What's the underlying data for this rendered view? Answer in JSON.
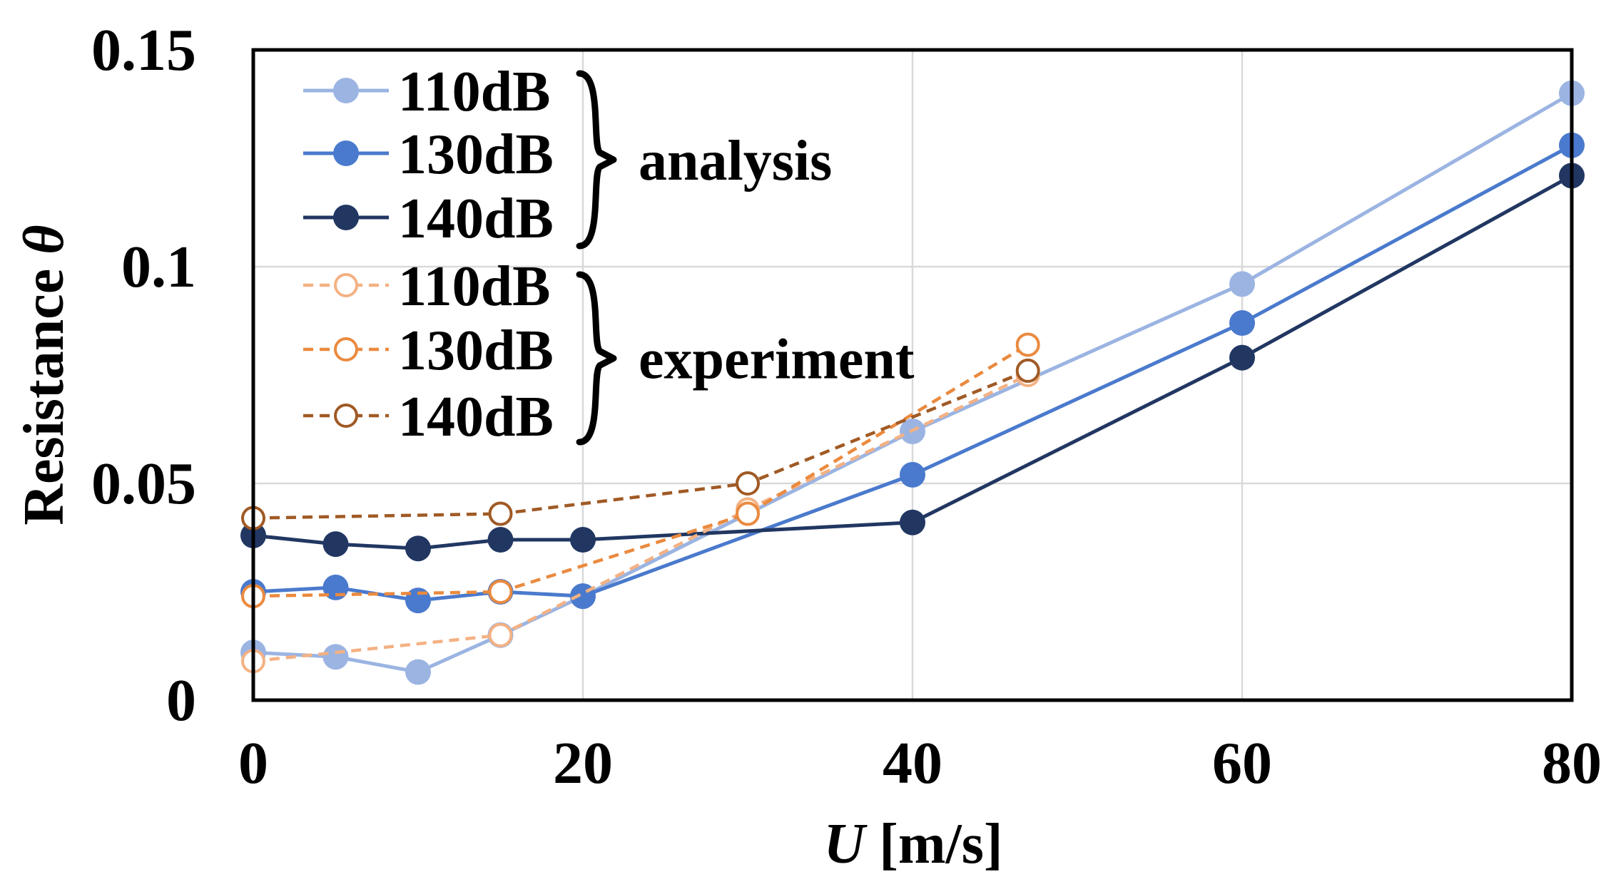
{
  "chart_data": {
    "type": "line",
    "xlabel": {
      "symbol": "U",
      "unit": " [m/s]"
    },
    "ylabel": {
      "text": "Resistance ",
      "symbol": "θ"
    },
    "xlim": [
      0,
      80
    ],
    "ylim": [
      0,
      0.15
    ],
    "x_ticks": [
      "0",
      "20",
      "40",
      "60",
      "80"
    ],
    "y_ticks": [
      "0",
      "0.05",
      "0.1",
      "0.15"
    ],
    "x_tick_values": [
      0,
      20,
      40,
      60,
      80
    ],
    "y_tick_values": [
      0,
      0.05,
      0.1,
      0.15
    ],
    "grid": true,
    "legend_position": "top-left",
    "series": [
      {
        "name": "110dB",
        "group": "analysis",
        "style": "solid-filled",
        "color": "#9bb4e2",
        "x": [
          0,
          5,
          10,
          15,
          20,
          40,
          60,
          80
        ],
        "y": [
          0.011,
          0.01,
          0.0065,
          0.015,
          0.024,
          0.062,
          0.096,
          0.14
        ]
      },
      {
        "name": "130dB",
        "group": "analysis",
        "style": "solid-filled",
        "color": "#4a7acd",
        "x": [
          0,
          5,
          10,
          15,
          20,
          40,
          60,
          80
        ],
        "y": [
          0.025,
          0.026,
          0.023,
          0.025,
          0.024,
          0.052,
          0.087,
          0.128
        ]
      },
      {
        "name": "140dB",
        "group": "analysis",
        "style": "solid-filled",
        "color": "#213762",
        "x": [
          0,
          5,
          10,
          15,
          20,
          40,
          60,
          80
        ],
        "y": [
          0.038,
          0.036,
          0.035,
          0.037,
          0.037,
          0.041,
          0.079,
          0.121
        ]
      },
      {
        "name": "110dB",
        "group": "experiment",
        "style": "dashed-open",
        "color": "#f4b183",
        "x": [
          0,
          15,
          30,
          47
        ],
        "y": [
          0.009,
          0.015,
          0.044,
          0.075
        ]
      },
      {
        "name": "130dB",
        "group": "experiment",
        "style": "dashed-open",
        "color": "#ea8a3f",
        "x": [
          0,
          15,
          30,
          47
        ],
        "y": [
          0.024,
          0.025,
          0.043,
          0.082
        ]
      },
      {
        "name": "140dB",
        "group": "experiment",
        "style": "dashed-open",
        "color": "#a05a25",
        "x": [
          0,
          15,
          30,
          47
        ],
        "y": [
          0.042,
          0.043,
          0.05,
          0.076
        ]
      }
    ],
    "legend_groups": [
      "analysis",
      "experiment"
    ]
  }
}
